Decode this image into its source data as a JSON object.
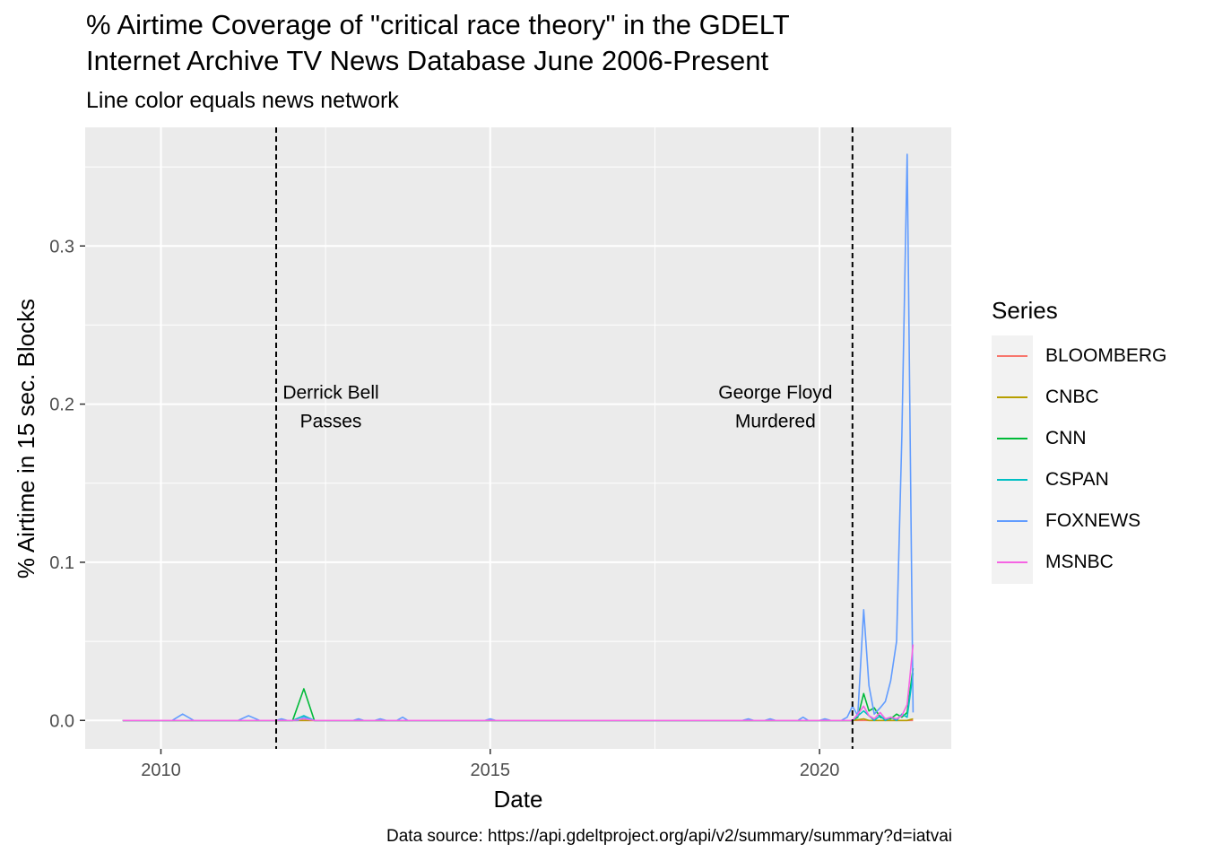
{
  "chart": {
    "title": "% Airtime Coverage of \"critical race theory\" in the GDELT\nInternet Archive TV News Database June 2006-Present",
    "subtitle": "Line color equals news network",
    "caption": "Data source: https://api.gdeltproject.org/api/v2/summary/summary?d=iatvai"
  },
  "legend": {
    "title": "Series"
  },
  "chart_data": {
    "type": "line",
    "title": "% Airtime Coverage of \"critical race theory\" in the GDELT Internet Archive TV News Database June 2006-Present",
    "subtitle": "Line color equals news network",
    "xlabel": "Date",
    "ylabel": "% Airtime in 15 sec. Blocks",
    "x_ticks": [
      2010,
      2015,
      2020
    ],
    "y_ticks": [
      0.0,
      0.1,
      0.2,
      0.3
    ],
    "y_tick_labels": [
      "0.0",
      "0.1",
      "0.2",
      "0.3"
    ],
    "xlim": [
      2008.85,
      2022.0
    ],
    "ylim": [
      -0.018,
      0.375
    ],
    "grid": true,
    "legend_position": "right",
    "annotations": [
      {
        "x": 2011.75,
        "lines": [
          "Derrick Bell",
          "Passes"
        ],
        "text_x": 2012.58,
        "text_y": 0.2
      },
      {
        "x": 2020.5,
        "lines": [
          "George Floyd",
          "Murdered"
        ],
        "text_x": 2019.33,
        "text_y": 0.2
      }
    ],
    "series": [
      {
        "name": "BLOOMBERG",
        "color": "#F8766D",
        "x": [
          2009.42,
          2020.5,
          2020.67,
          2020.83,
          2021.0,
          2021.17,
          2021.33,
          2021.42
        ],
        "y": [
          0,
          0,
          0,
          0,
          0,
          0,
          0,
          0
        ]
      },
      {
        "name": "CNBC",
        "color": "#B79F00",
        "x": [
          2009.42,
          2020.5,
          2020.67,
          2020.75,
          2020.83,
          2021.0,
          2021.17,
          2021.33,
          2021.42
        ],
        "y": [
          0,
          0,
          0.001,
          0,
          0,
          0,
          0,
          0,
          0.001
        ]
      },
      {
        "name": "CNN",
        "color": "#00BA38",
        "x": [
          2009.42,
          2012.0,
          2012.17,
          2012.33,
          2020.5,
          2020.58,
          2020.67,
          2020.75,
          2020.83,
          2020.92,
          2021.0,
          2021.08,
          2021.17,
          2021.25,
          2021.33,
          2021.42
        ],
        "y": [
          0,
          0,
          0.02,
          0,
          0,
          0.002,
          0.017,
          0.006,
          0.008,
          0.002,
          0.001,
          0.001,
          0.004,
          0.002,
          0.005,
          0.033
        ]
      },
      {
        "name": "CSPAN",
        "color": "#00BFC4",
        "x": [
          2009.42,
          2012.0,
          2012.17,
          2012.33,
          2020.5,
          2020.67,
          2020.75,
          2020.83,
          2020.92,
          2021.0,
          2021.08,
          2021.17,
          2021.25,
          2021.33,
          2021.42
        ],
        "y": [
          0,
          0,
          0.003,
          0,
          0,
          0.006,
          0.003,
          0,
          0.003,
          0,
          0.002,
          0,
          0.004,
          0.002,
          0.03
        ]
      },
      {
        "name": "FOXNEWS",
        "color": "#619CFF",
        "x": [
          2009.42,
          2010.17,
          2010.33,
          2010.5,
          2011.17,
          2011.33,
          2011.5,
          2011.75,
          2011.83,
          2011.92,
          2012.08,
          2012.17,
          2012.33,
          2012.92,
          2013.0,
          2013.08,
          2013.25,
          2013.33,
          2013.42,
          2013.58,
          2013.67,
          2013.75,
          2014.92,
          2015.0,
          2015.08,
          2018.83,
          2018.92,
          2019.0,
          2019.17,
          2019.25,
          2019.33,
          2019.67,
          2019.75,
          2019.83,
          2020.0,
          2020.08,
          2020.17,
          2020.33,
          2020.42,
          2020.5,
          2020.58,
          2020.67,
          2020.75,
          2020.83,
          2020.92,
          2021.0,
          2021.08,
          2021.17,
          2021.25,
          2021.33,
          2021.42
        ],
        "y": [
          0,
          0,
          0.004,
          0,
          0,
          0.003,
          0,
          0,
          0.001,
          0,
          0,
          0.002,
          0,
          0,
          0.001,
          0,
          0,
          0.001,
          0,
          0,
          0.002,
          0,
          0,
          0.001,
          0,
          0,
          0.001,
          0,
          0,
          0.001,
          0,
          0,
          0.002,
          0,
          0,
          0.001,
          0,
          0,
          0.002,
          0.009,
          0.003,
          0.07,
          0.022,
          0.004,
          0.008,
          0.012,
          0.025,
          0.05,
          0.18,
          0.358,
          0.005
        ]
      },
      {
        "name": "MSNBC",
        "color": "#F564E3",
        "x": [
          2009.42,
          2012.0,
          2012.17,
          2012.33,
          2020.5,
          2020.58,
          2020.67,
          2020.75,
          2020.83,
          2020.92,
          2021.0,
          2021.08,
          2021.17,
          2021.25,
          2021.33,
          2021.42
        ],
        "y": [
          0,
          0,
          0.001,
          0,
          0,
          0.004,
          0.009,
          0.003,
          0.001,
          0.005,
          0.001,
          0.002,
          0.001,
          0.003,
          0.01,
          0.048
        ]
      }
    ]
  }
}
